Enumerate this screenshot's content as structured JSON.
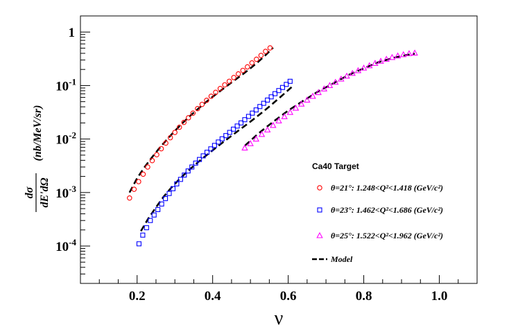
{
  "chart_data": {
    "type": "scatter",
    "title": "",
    "xlabel": "ν",
    "ylabel": "dσ/dE'dΩ (nb/MeV/sr)",
    "ylabel_parts": {
      "numerator": "dσ",
      "denominator": "dE'dΩ",
      "units": "(nb/MeV/sr)"
    },
    "xlim": [
      0.05,
      1.1
    ],
    "ylim": [
      2e-05,
      2
    ],
    "yscale": "log",
    "grid": false,
    "x_ticks": [
      {
        "value": 0.2,
        "label": "0.2"
      },
      {
        "value": 0.4,
        "label": "0.4"
      },
      {
        "value": 0.6,
        "label": "0.6"
      },
      {
        "value": 0.8,
        "label": "0.8"
      },
      {
        "value": 1.0,
        "label": "1.0"
      }
    ],
    "y_ticks": [
      {
        "value": 0.0001,
        "base": "10",
        "exp": "-4"
      },
      {
        "value": 0.001,
        "base": "10",
        "exp": "-3"
      },
      {
        "value": 0.01,
        "base": "10",
        "exp": "-2"
      },
      {
        "value": 0.1,
        "base": "10",
        "exp": "-1"
      },
      {
        "value": 1,
        "base": "1",
        "exp": ""
      }
    ],
    "legend": {
      "placement": "right",
      "header": "Ca40 Target",
      "entries": [
        {
          "marker": "circle",
          "color": "#ff0000",
          "text": "θ=21°: 1.248<Q²<1.418 (GeV/c²)"
        },
        {
          "marker": "square",
          "color": "#0000ff",
          "text": "θ=23°: 1.462<Q²<1.686 (GeV/c²)"
        },
        {
          "marker": "triangle",
          "color": "#ff00ff",
          "text": "θ=25°: 1.522<Q²<1.962 (GeV/c²)"
        },
        {
          "marker": "dashed-line",
          "color": "#000000",
          "text": "Model"
        }
      ]
    },
    "series": [
      {
        "marker": "circle",
        "color": "#ff0000",
        "x": [
          0.18,
          0.192,
          0.204,
          0.216,
          0.228,
          0.24,
          0.252,
          0.264,
          0.276,
          0.288,
          0.3,
          0.312,
          0.324,
          0.336,
          0.348,
          0.36,
          0.372,
          0.384,
          0.396,
          0.408,
          0.42,
          0.432,
          0.444,
          0.456,
          0.468,
          0.48,
          0.492,
          0.504,
          0.516,
          0.528,
          0.54,
          0.552
        ],
        "y": [
          0.00079,
          0.00115,
          0.0016,
          0.0022,
          0.003,
          0.00395,
          0.0051,
          0.0066,
          0.0084,
          0.0106,
          0.0133,
          0.0166,
          0.0205,
          0.025,
          0.0305,
          0.037,
          0.0445,
          0.053,
          0.063,
          0.0745,
          0.088,
          0.103,
          0.12,
          0.141,
          0.165,
          0.192,
          0.223,
          0.265,
          0.31,
          0.365,
          0.435,
          0.505
        ]
      },
      {
        "marker": "square",
        "color": "#0000ff",
        "x": [
          0.205,
          0.215,
          0.225,
          0.235,
          0.245,
          0.255,
          0.265,
          0.275,
          0.285,
          0.295,
          0.305,
          0.315,
          0.325,
          0.335,
          0.345,
          0.355,
          0.365,
          0.375,
          0.385,
          0.395,
          0.405,
          0.415,
          0.425,
          0.435,
          0.445,
          0.455,
          0.465,
          0.475,
          0.485,
          0.495,
          0.505,
          0.515,
          0.525,
          0.535,
          0.545,
          0.555,
          0.565,
          0.575,
          0.585,
          0.595,
          0.605
        ],
        "y": [
          0.00011,
          0.00016,
          0.00022,
          0.0003,
          0.00038,
          0.00048,
          0.00061,
          0.00077,
          0.00096,
          0.00118,
          0.00145,
          0.00176,
          0.00212,
          0.00253,
          0.003,
          0.00355,
          0.00415,
          0.00485,
          0.00565,
          0.00655,
          0.0076,
          0.0088,
          0.0101,
          0.0116,
          0.0133,
          0.0153,
          0.0175,
          0.02,
          0.023,
          0.0265,
          0.0305,
          0.035,
          0.0405,
          0.0465,
          0.0535,
          0.0615,
          0.0705,
          0.0805,
          0.092,
          0.105,
          0.12
        ]
      },
      {
        "marker": "triangle",
        "color": "#ff00ff",
        "x": [
          0.485,
          0.5,
          0.515,
          0.53,
          0.545,
          0.56,
          0.575,
          0.59,
          0.605,
          0.62,
          0.635,
          0.65,
          0.665,
          0.68,
          0.695,
          0.71,
          0.725,
          0.74,
          0.755,
          0.77,
          0.785,
          0.8,
          0.815,
          0.83,
          0.845,
          0.86,
          0.875,
          0.89,
          0.905,
          0.92,
          0.935
        ],
        "y": [
          0.0068,
          0.0082,
          0.01,
          0.0122,
          0.0148,
          0.018,
          0.0218,
          0.0262,
          0.0315,
          0.0378,
          0.045,
          0.0535,
          0.063,
          0.074,
          0.0865,
          0.1,
          0.115,
          0.132,
          0.15,
          0.169,
          0.19,
          0.212,
          0.235,
          0.26,
          0.285,
          0.31,
          0.335,
          0.358,
          0.378,
          0.395,
          0.405
        ]
      }
    ],
    "model_curves": [
      {
        "x": [
          0.18,
          0.2,
          0.22,
          0.24,
          0.26,
          0.28,
          0.3,
          0.32,
          0.34,
          0.36,
          0.38,
          0.4,
          0.42,
          0.44,
          0.46,
          0.48,
          0.5,
          0.52,
          0.54,
          0.56
        ],
        "y": [
          0.001,
          0.00185,
          0.003,
          0.0046,
          0.0069,
          0.01,
          0.0142,
          0.0198,
          0.027,
          0.036,
          0.0475,
          0.0615,
          0.079,
          0.101,
          0.129,
          0.163,
          0.21,
          0.275,
          0.37,
          0.51
        ]
      },
      {
        "x": [
          0.21,
          0.23,
          0.25,
          0.27,
          0.29,
          0.31,
          0.33,
          0.35,
          0.37,
          0.39,
          0.41,
          0.43,
          0.45,
          0.47,
          0.49,
          0.51,
          0.53,
          0.55,
          0.57,
          0.59,
          0.61
        ],
        "y": [
          0.00019,
          0.00033,
          0.00053,
          0.00083,
          0.00122,
          0.00172,
          0.00236,
          0.00315,
          0.00415,
          0.0054,
          0.007,
          0.009,
          0.0115,
          0.0147,
          0.0187,
          0.024,
          0.031,
          0.0405,
          0.0535,
          0.071,
          0.095
        ]
      },
      {
        "x": [
          0.485,
          0.52,
          0.56,
          0.6,
          0.64,
          0.68,
          0.72,
          0.76,
          0.8,
          0.84,
          0.88,
          0.91,
          0.935
        ],
        "y": [
          0.0075,
          0.0125,
          0.021,
          0.034,
          0.052,
          0.078,
          0.11,
          0.158,
          0.21,
          0.275,
          0.33,
          0.37,
          0.395
        ]
      }
    ]
  }
}
